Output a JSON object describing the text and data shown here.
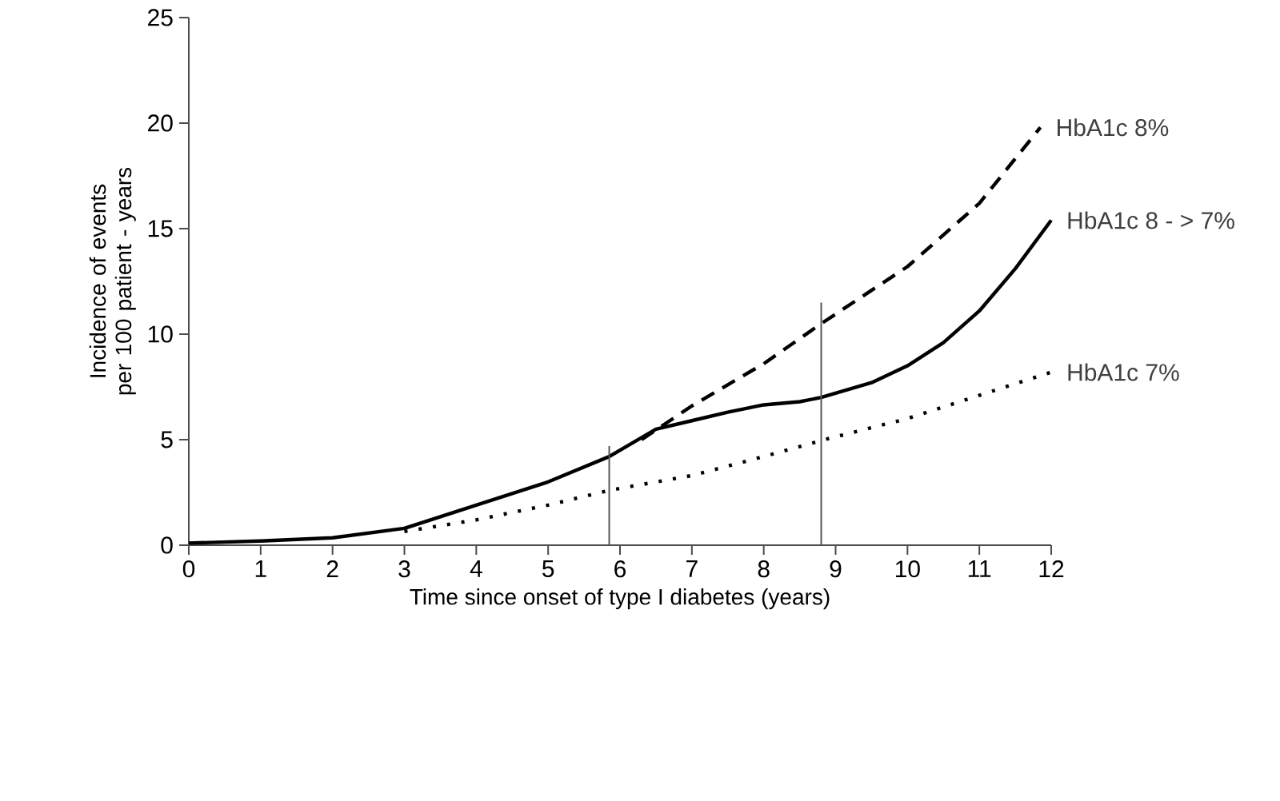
{
  "chart_data": {
    "type": "line",
    "xlabel": "Time since onset of type I diabetes (years)",
    "ylabel": "Incidence of events per 100 patient - years",
    "xlim": [
      0,
      12
    ],
    "xticks": [
      0,
      1,
      2,
      3,
      4,
      5,
      6,
      7,
      8,
      9,
      10,
      11,
      12
    ],
    "ylim": [
      0,
      25
    ],
    "yticks": [
      0,
      5,
      10,
      15,
      20,
      25
    ],
    "series": [
      {
        "name": "HbA1c 8%",
        "color": "#000000",
        "line_style": "dashed",
        "x": [
          6.3,
          7,
          8,
          8.8,
          10,
          11,
          11.85
        ],
        "values": [
          5.0,
          6.6,
          8.6,
          10.5,
          13.2,
          16.2,
          19.8
        ]
      },
      {
        "name": "HbA1c 8 - > 7%",
        "color": "#000000",
        "line_style": "solid",
        "x": [
          0,
          1,
          2,
          3,
          4,
          5,
          5.85,
          6.5,
          7,
          7.5,
          8,
          8.5,
          8.8,
          9.5,
          10,
          10.5,
          11,
          11.5,
          12
        ],
        "values": [
          0.1,
          0.2,
          0.35,
          0.8,
          1.9,
          3.0,
          4.2,
          5.5,
          5.9,
          6.3,
          6.65,
          6.8,
          7.0,
          7.7,
          8.5,
          9.6,
          11.1,
          13.1,
          15.4
        ]
      },
      {
        "name": "HbA1c 7%",
        "color": "#000000",
        "line_style": "dotted",
        "x": [
          3,
          4,
          5,
          5.85,
          7,
          8,
          8.9,
          10,
          11,
          12
        ],
        "values": [
          0.65,
          1.2,
          1.9,
          2.6,
          3.3,
          4.2,
          5.05,
          6.0,
          7.1,
          8.2
        ]
      },
      {
        "color": "#555555",
        "line_style": "solid",
        "x": [
          5.85,
          5.85
        ],
        "values": [
          0,
          4.7
        ]
      },
      {
        "color": "#555555",
        "line_style": "solid",
        "x": [
          8.8,
          8.8
        ],
        "values": [
          0,
          11.5
        ]
      }
    ]
  }
}
